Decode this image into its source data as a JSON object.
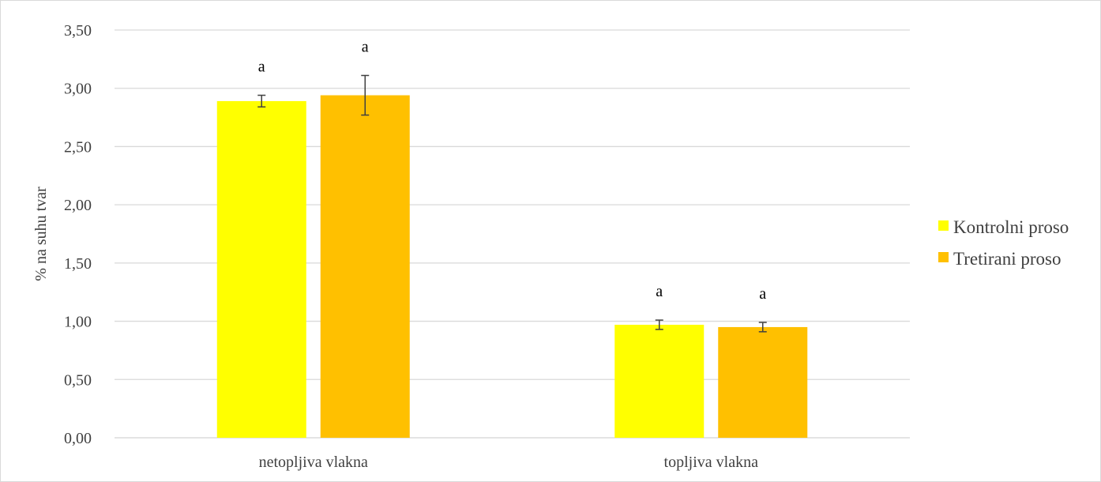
{
  "chart_data": {
    "type": "bar",
    "ylabel": "% na suhu tvar",
    "xlabel": "",
    "ylim": [
      0,
      3.5
    ],
    "yticks": [
      "0,00",
      "0,50",
      "1,00",
      "1,50",
      "2,00",
      "2,50",
      "3,00",
      "3,50"
    ],
    "categories": [
      "netopljiva vlakna",
      "topljiva vlakna"
    ],
    "grid": true,
    "legend_position": "right",
    "series": [
      {
        "name": "Kontrolni proso",
        "color": "#ffff00",
        "values": [
          2.89,
          0.97
        ],
        "errors": [
          0.05,
          0.04
        ],
        "labels": [
          "a",
          "a"
        ]
      },
      {
        "name": "Tretirani proso",
        "color": "#ffc000",
        "values": [
          2.94,
          0.95
        ],
        "errors": [
          0.17,
          0.04
        ],
        "labels": [
          "a",
          "a"
        ]
      }
    ]
  }
}
